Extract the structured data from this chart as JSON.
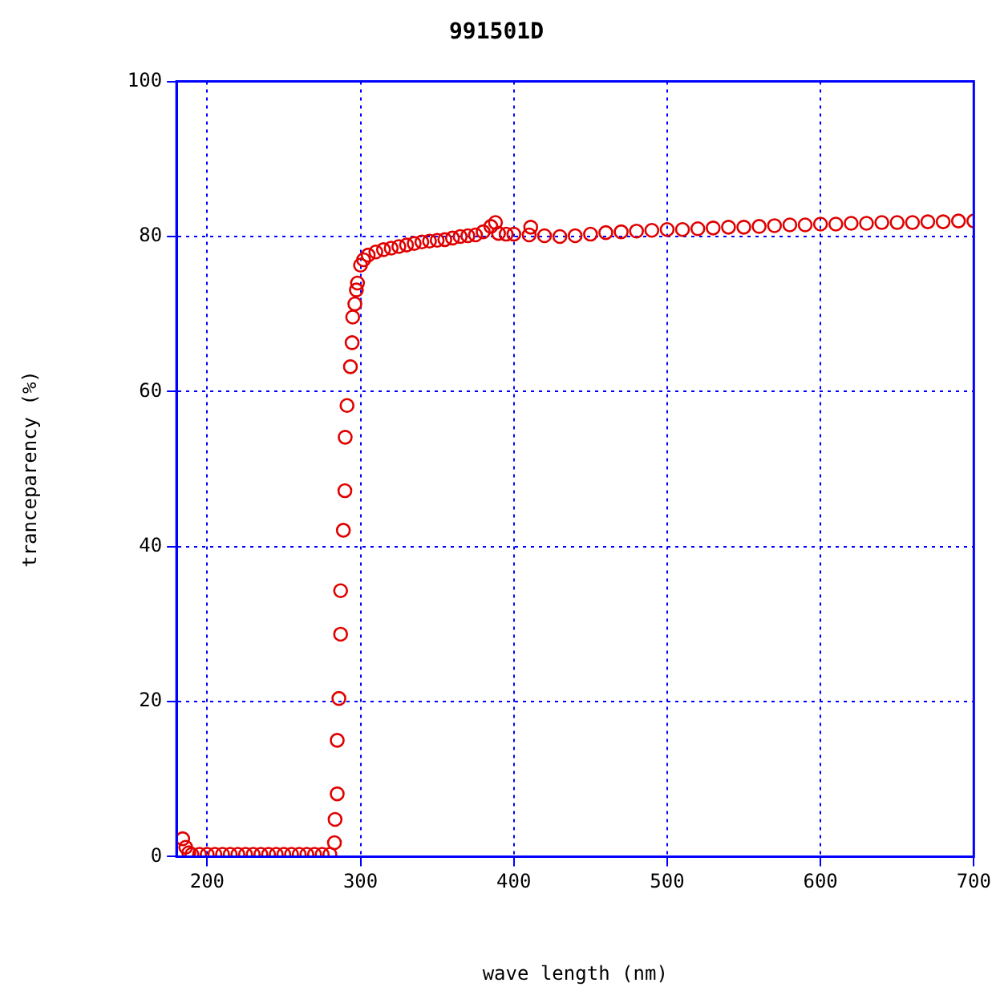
{
  "chart_data": {
    "type": "scatter",
    "title": "991501D",
    "xlabel": "wave length (nm)",
    "ylabel": "tranceparency (%)",
    "xlim": [
      180,
      700
    ],
    "xticks": [
      200,
      300,
      400,
      500,
      600,
      700
    ],
    "ylim": [
      0,
      100
    ],
    "yticks": [
      0,
      20,
      40,
      60,
      80,
      100
    ],
    "grid": true,
    "marker": "circle",
    "legend": false,
    "series": [
      {
        "color": "#e00000",
        "x": [
          184,
          186,
          188,
          190,
          195,
          200,
          205,
          210,
          215,
          220,
          225,
          230,
          235,
          240,
          245,
          250,
          255,
          260,
          265,
          270,
          275,
          280,
          283,
          283.4,
          284.8,
          284.8,
          285.9,
          287,
          287,
          288.8,
          289.8,
          290,
          291.2,
          293.4,
          294.5,
          294.9,
          296.3,
          297.3,
          298,
          300,
          302,
          305,
          310,
          315,
          320,
          325,
          330,
          335,
          340,
          345,
          350,
          355,
          360,
          365,
          370,
          375,
          380,
          385,
          388,
          390,
          395,
          400,
          410,
          411,
          420,
          430,
          440,
          450,
          460,
          470,
          480,
          490,
          500,
          510,
          520,
          530,
          540,
          550,
          560,
          570,
          580,
          590,
          600,
          610,
          620,
          630,
          640,
          650,
          660,
          670,
          680,
          690,
          700
        ],
        "values": [
          2.3,
          1.2,
          0.5,
          0.3,
          0.3,
          0.3,
          0.3,
          0.3,
          0.3,
          0.3,
          0.3,
          0.3,
          0.3,
          0.3,
          0.3,
          0.3,
          0.3,
          0.3,
          0.3,
          0.3,
          0.3,
          0.3,
          1.8,
          4.8,
          8.1,
          15,
          20.4,
          28.7,
          34.3,
          42.1,
          47.2,
          54.1,
          58.2,
          63.2,
          66.3,
          69.6,
          71.3,
          73.1,
          74,
          76.3,
          77,
          77.6,
          78,
          78.3,
          78.5,
          78.7,
          78.9,
          79.1,
          79.3,
          79.4,
          79.5,
          79.6,
          79.8,
          80,
          80.1,
          80.2,
          80.6,
          81.3,
          81.8,
          80.4,
          80.3,
          80.3,
          80.2,
          81.2,
          80.1,
          80,
          80.1,
          80.3,
          80.5,
          80.6,
          80.7,
          80.8,
          80.9,
          80.9,
          81,
          81.1,
          81.2,
          81.2,
          81.3,
          81.4,
          81.5,
          81.5,
          81.6,
          81.6,
          81.7,
          81.7,
          81.8,
          81.8,
          81.8,
          81.9,
          81.9,
          82,
          82
        ]
      }
    ]
  }
}
